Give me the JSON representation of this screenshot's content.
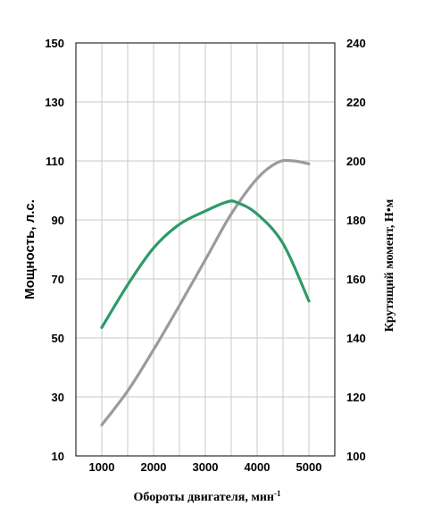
{
  "chart_data": {
    "type": "line",
    "x_axis": {
      "label": "Обороты двигателя, мин",
      "label_sup": "-1",
      "range": [
        500,
        5500
      ],
      "ticks": [
        1000,
        2000,
        3000,
        4000,
        5000
      ]
    },
    "y_left": {
      "label": "Мощность, л.с.",
      "range": [
        10,
        150
      ],
      "ticks": [
        10,
        30,
        50,
        70,
        90,
        110,
        130,
        150
      ]
    },
    "y_right": {
      "label": "Крутящий момент, Н•м",
      "range": [
        100,
        240
      ],
      "ticks": [
        100,
        120,
        140,
        160,
        180,
        200,
        220,
        240
      ]
    },
    "grid": true,
    "series": [
      {
        "color": "#9b9b9b",
        "axis": "left",
        "points": [
          [
            1000,
            20.5
          ],
          [
            1500,
            32
          ],
          [
            2000,
            46
          ],
          [
            2500,
            61
          ],
          [
            3000,
            76.5
          ],
          [
            3500,
            92
          ],
          [
            4000,
            104
          ],
          [
            4400,
            109.5
          ],
          [
            4700,
            110
          ],
          [
            5000,
            109
          ]
        ]
      },
      {
        "color": "#2e9a68",
        "axis": "right",
        "points": [
          [
            1000,
            143.5
          ],
          [
            1500,
            158
          ],
          [
            2000,
            170.5
          ],
          [
            2500,
            178.5
          ],
          [
            3000,
            183
          ],
          [
            3400,
            186
          ],
          [
            3600,
            186
          ],
          [
            4000,
            182
          ],
          [
            4500,
            172
          ],
          [
            5000,
            152.5
          ]
        ]
      }
    ]
  }
}
